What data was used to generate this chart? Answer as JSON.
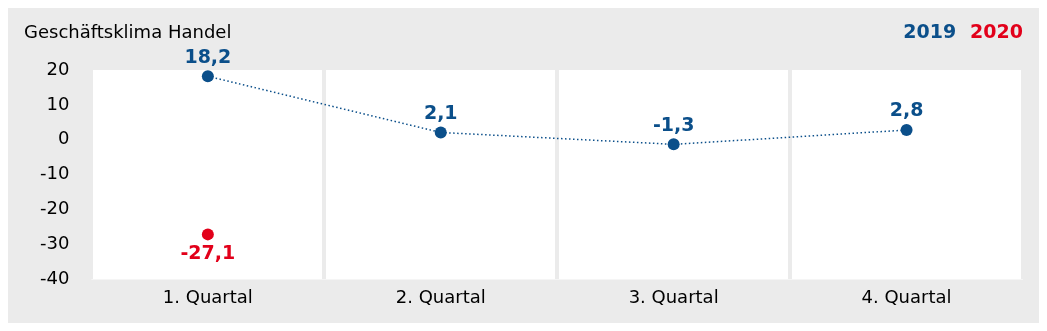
{
  "chart_data": {
    "type": "line",
    "title": "Geschäftsklima Handel",
    "categories": [
      "1. Quartal",
      "2. Quartal",
      "3. Quartal",
      "4. Quartal"
    ],
    "series": [
      {
        "name": "2019",
        "color": "#0b4f8a",
        "values": [
          18.2,
          2.1,
          -1.3,
          2.8
        ],
        "value_labels": [
          "18,2",
          "2,1",
          "-1,3",
          "2,8"
        ],
        "line_style": "dotted"
      },
      {
        "name": "2020",
        "color": "#e2001a",
        "values": [
          -27.1,
          null,
          null,
          null
        ],
        "value_labels": [
          "-27,1",
          null,
          null,
          null
        ]
      }
    ],
    "ylim": [
      -40,
      20
    ],
    "yticks": [
      -40,
      -30,
      -20,
      -10,
      0,
      10,
      20
    ],
    "grid": "x",
    "legend": "top right",
    "marker": "circle"
  }
}
